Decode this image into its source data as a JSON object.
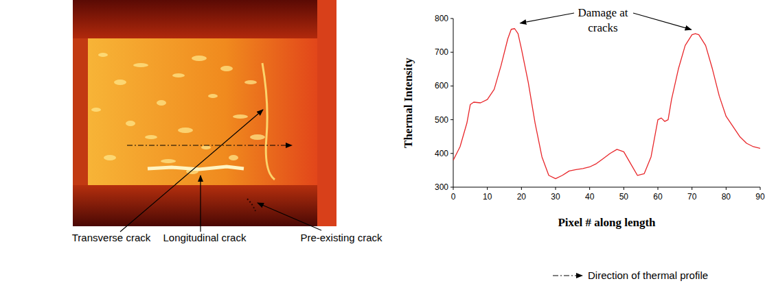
{
  "chart_data": {
    "type": "line",
    "x": [
      0,
      2,
      4,
      5,
      6,
      8,
      10,
      12,
      14,
      16,
      17,
      18,
      19,
      20,
      22,
      24,
      26,
      28,
      30,
      32,
      34,
      36,
      38,
      40,
      42,
      44,
      46,
      48,
      50,
      52,
      54,
      56,
      58,
      60,
      61,
      62,
      63,
      64,
      66,
      68,
      70,
      71,
      72,
      74,
      76,
      78,
      80,
      82,
      84,
      86,
      88,
      90
    ],
    "values": [
      380,
      420,
      490,
      545,
      552,
      550,
      560,
      590,
      660,
      740,
      768,
      770,
      755,
      710,
      610,
      490,
      390,
      335,
      325,
      335,
      348,
      352,
      355,
      360,
      370,
      385,
      400,
      412,
      405,
      370,
      335,
      340,
      390,
      500,
      505,
      495,
      500,
      560,
      650,
      720,
      752,
      755,
      752,
      720,
      650,
      570,
      510,
      480,
      450,
      430,
      420,
      415
    ],
    "color": "#e8262a",
    "xlim": [
      0,
      90
    ],
    "xticks": [
      0,
      10,
      20,
      30,
      40,
      50,
      60,
      70,
      80,
      90
    ],
    "ylim": [
      300,
      800
    ],
    "yticks": [
      300,
      400,
      500,
      600,
      700,
      800
    ],
    "x_label": "Pixel # along length",
    "y_label": "Thermal Intensity",
    "annotation": [
      "Damage at",
      "cracks"
    ]
  },
  "photo": {
    "labels": [
      "Transverse crack",
      "Longitudinal crack",
      "Pre-existing crack"
    ],
    "profile_label": "Direction of thermal profile"
  }
}
